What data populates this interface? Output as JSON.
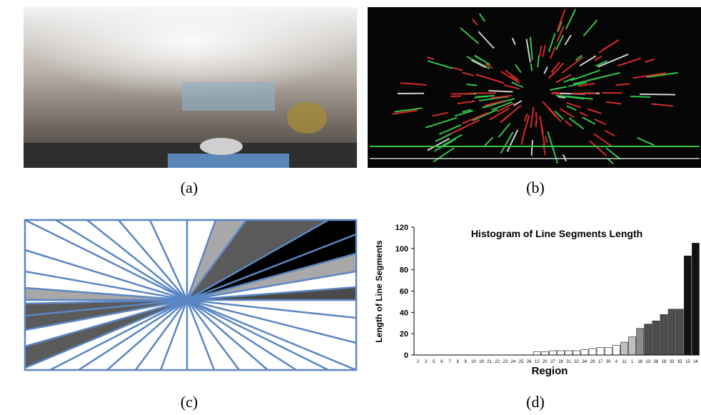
{
  "captions": [
    "(a)",
    "(b)",
    "(c)",
    "(d)"
  ],
  "chart_data": {
    "type": "bar",
    "title": "Histogram of Line Segments Length",
    "x_label": "Region",
    "y_label": "Length of Line Segments",
    "categories": [
      "2",
      "3",
      "5",
      "6",
      "7",
      "8",
      "9",
      "10",
      "19",
      "21",
      "22",
      "23",
      "24",
      "25",
      "26",
      "12",
      "20",
      "27",
      "28",
      "31",
      "32",
      "34",
      "29",
      "17",
      "30",
      "4",
      "11",
      "1",
      "16",
      "13",
      "36",
      "18",
      "33",
      "35",
      "15",
      "14"
    ],
    "values": [
      0,
      0,
      0,
      0,
      0,
      0,
      0,
      0,
      0,
      0,
      0,
      0,
      0,
      0,
      0,
      3,
      3,
      4,
      4,
      4,
      4,
      5,
      6,
      7,
      7,
      9,
      12,
      17,
      25,
      29,
      32,
      38,
      43,
      43,
      93,
      105
    ],
    "colors": [
      "#ffffff",
      "#ffffff",
      "#ffffff",
      "#ffffff",
      "#ffffff",
      "#ffffff",
      "#ffffff",
      "#ffffff",
      "#ffffff",
      "#ffffff",
      "#ffffff",
      "#ffffff",
      "#ffffff",
      "#ffffff",
      "#ffffff",
      "#ffffff",
      "#ffffff",
      "#ffffff",
      "#ffffff",
      "#ffffff",
      "#ffffff",
      "#ffffff",
      "#ffffff",
      "#ffffff",
      "#ffffff",
      "#ffffff",
      "#c0c0c0",
      "#c0c0c0",
      "#8c8c8c",
      "#4d4d4d",
      "#4d4d4d",
      "#4d4d4d",
      "#4d4d4d",
      "#4d4d4d",
      "#111111",
      "#111111"
    ],
    "ylim": [
      0,
      120
    ],
    "yticks": [
      0,
      20,
      40,
      60,
      80,
      100,
      120
    ]
  }
}
